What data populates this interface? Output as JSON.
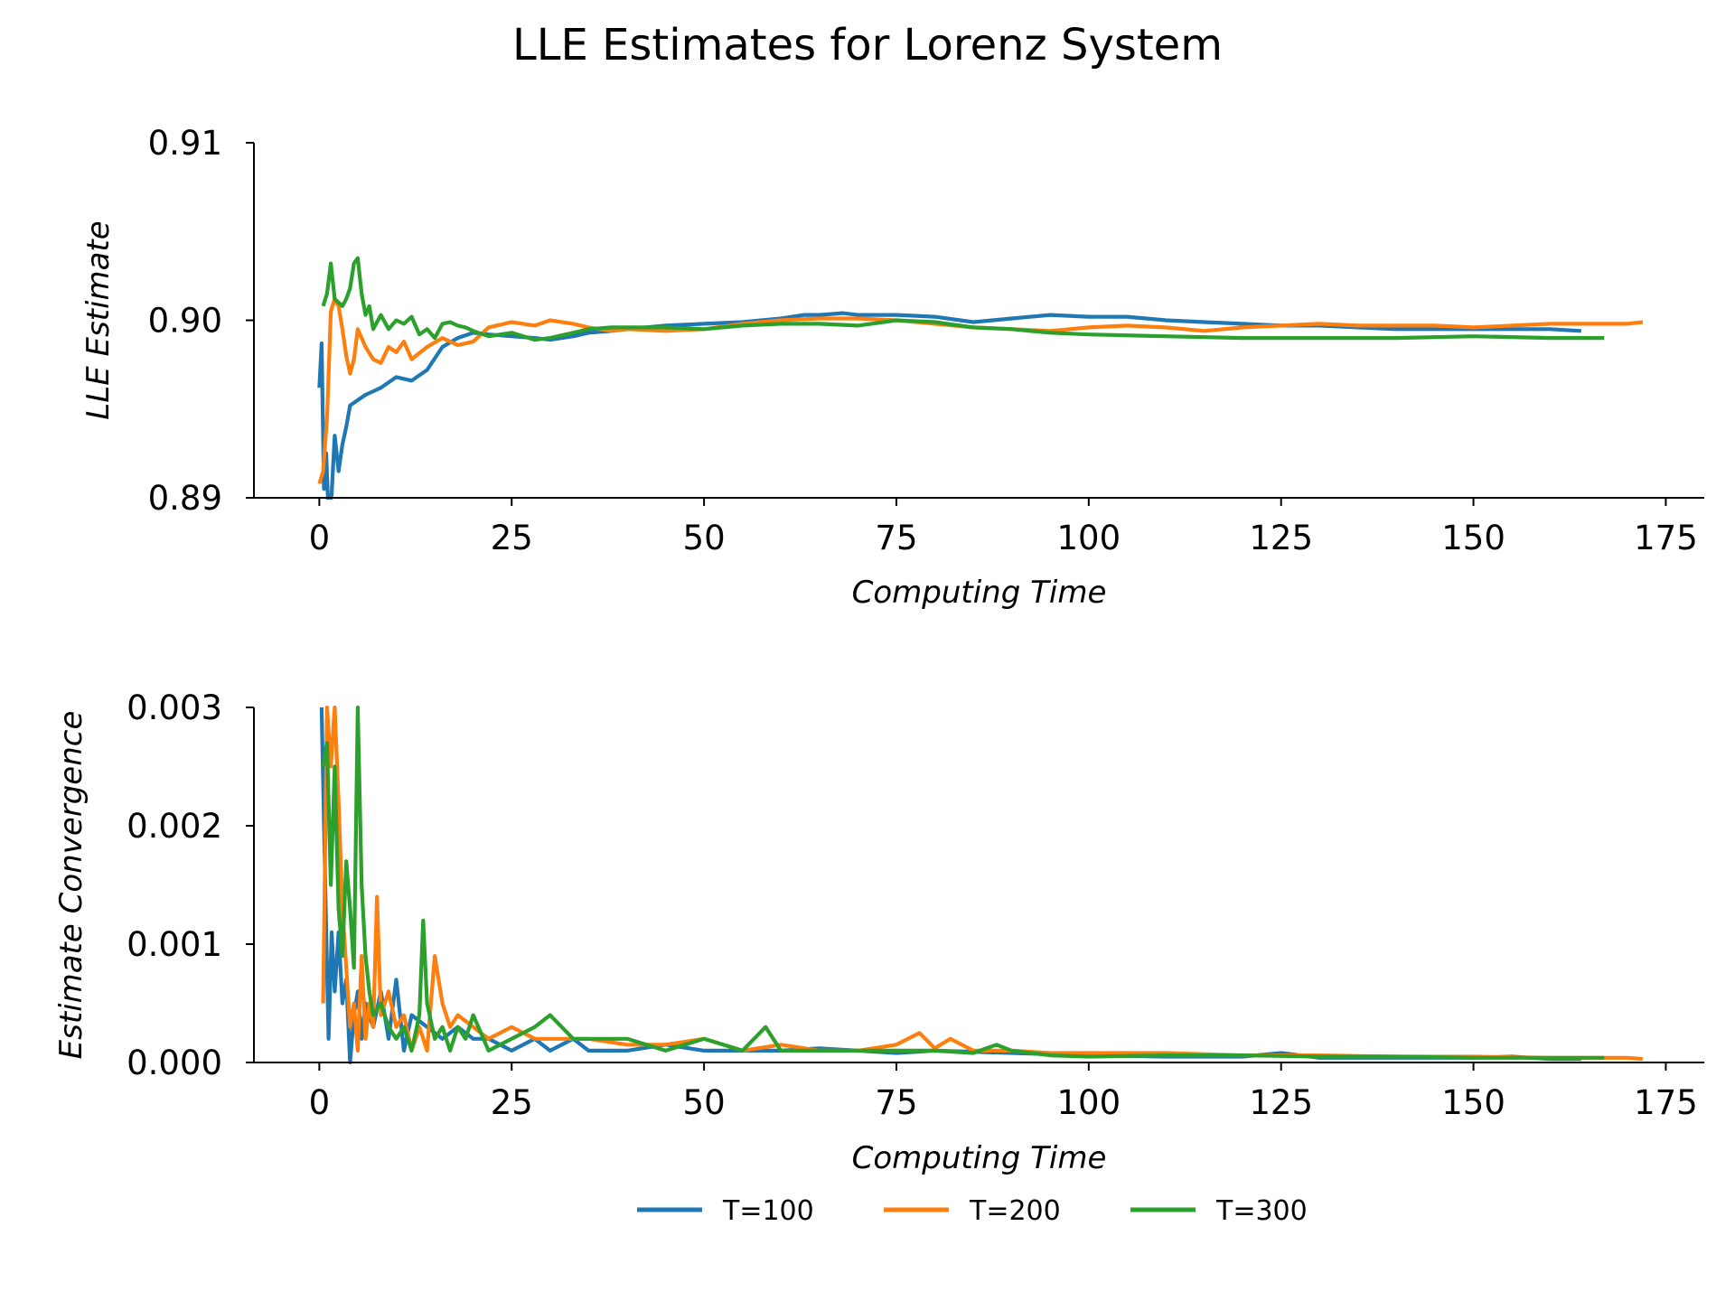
{
  "chart_data": {
    "title": "LLE Estimates for Lorenz System",
    "legend": {
      "placement": "bottom-center",
      "entries": [
        "T=100",
        "T=200",
        "T=300"
      ]
    },
    "colors": {
      "T=100": "#1f77b4",
      "T=200": "#ff7f0e",
      "T=300": "#2ca02c"
    },
    "charts": [
      {
        "type": "line",
        "xlabel": "Computing Time",
        "ylabel": "LLE Estimate",
        "xlim": [
          -8.5,
          180
        ],
        "ylim": [
          0.89,
          0.91
        ],
        "xticks": [
          "0",
          "25",
          "50",
          "75",
          "100",
          "125",
          "150",
          "175"
        ],
        "yticks": [
          "0.89",
          "0.90",
          "0.91"
        ],
        "grid": false,
        "series": [
          {
            "name": "T=100",
            "x": [
              0,
              0.3,
              0.6,
              0.9,
              1.2,
              1.6,
              2,
              2.5,
              3,
              3.5,
              4,
              5,
              6,
              7,
              8,
              9,
              10,
              12,
              14,
              16,
              18,
              20,
              22,
              25,
              28,
              30,
              33,
              35,
              38,
              40,
              45,
              50,
              55,
              60,
              63,
              65,
              68,
              70,
              75,
              80,
              85,
              90,
              95,
              100,
              105,
              110,
              115,
              120,
              125,
              130,
              135,
              140,
              145,
              150,
              155,
              160,
              164
            ],
            "y": [
              0.8962,
              0.8987,
              0.8905,
              0.8925,
              0.889,
              0.8902,
              0.8935,
              0.8915,
              0.893,
              0.894,
              0.8952,
              0.8955,
              0.8958,
              0.896,
              0.8962,
              0.8965,
              0.8968,
              0.8966,
              0.8972,
              0.8985,
              0.899,
              0.8993,
              0.8992,
              0.8991,
              0.899,
              0.8989,
              0.8991,
              0.8993,
              0.8994,
              0.8995,
              0.8997,
              0.8998,
              0.8999,
              0.9001,
              0.9003,
              0.9003,
              0.9004,
              0.9003,
              0.9003,
              0.9002,
              0.8999,
              0.9001,
              0.9003,
              0.9002,
              0.9002,
              0.9,
              0.8999,
              0.8998,
              0.8997,
              0.8997,
              0.8996,
              0.8995,
              0.8995,
              0.8995,
              0.8995,
              0.8995,
              0.8994
            ]
          },
          {
            "name": "T=200",
            "x": [
              0,
              0.5,
              1,
              1.5,
              2,
              2.5,
              3,
              3.5,
              4,
              4.5,
              5,
              6,
              7,
              8,
              9,
              10,
              11,
              12,
              14,
              16,
              18,
              20,
              22,
              25,
              28,
              30,
              33,
              35,
              38,
              40,
              45,
              50,
              55,
              60,
              65,
              70,
              75,
              80,
              85,
              90,
              95,
              100,
              105,
              110,
              115,
              120,
              125,
              130,
              135,
              140,
              145,
              150,
              155,
              160,
              165,
              170,
              172
            ],
            "y": [
              0.8908,
              0.8915,
              0.8945,
              0.9005,
              0.9012,
              0.9008,
              0.8995,
              0.898,
              0.897,
              0.8978,
              0.8995,
              0.8985,
              0.8978,
              0.8976,
              0.8985,
              0.8982,
              0.8988,
              0.8978,
              0.8985,
              0.899,
              0.8986,
              0.8988,
              0.8996,
              0.8999,
              0.8997,
              0.9,
              0.8998,
              0.8996,
              0.8994,
              0.8995,
              0.8994,
              0.8995,
              0.8998,
              0.9,
              0.9001,
              0.9001,
              0.9,
              0.8998,
              0.8996,
              0.8995,
              0.8994,
              0.8996,
              0.8997,
              0.8996,
              0.8994,
              0.8996,
              0.8997,
              0.8998,
              0.8997,
              0.8997,
              0.8997,
              0.8996,
              0.8997,
              0.8998,
              0.8998,
              0.8998,
              0.8999
            ]
          },
          {
            "name": "T=300",
            "x": [
              0.5,
              1,
              1.5,
              2,
              2.5,
              3,
              3.5,
              4,
              4.5,
              5,
              5.5,
              6,
              6.5,
              7,
              8,
              9,
              10,
              11,
              12,
              13,
              14,
              15,
              16,
              17,
              18,
              19,
              20,
              22,
              25,
              28,
              30,
              33,
              35,
              38,
              40,
              45,
              50,
              55,
              60,
              65,
              70,
              75,
              80,
              85,
              90,
              95,
              100,
              110,
              120,
              130,
              140,
              150,
              160,
              167
            ],
            "y": [
              0.9008,
              0.9015,
              0.9032,
              0.9012,
              0.901,
              0.9008,
              0.9012,
              0.9018,
              0.9032,
              0.9035,
              0.9015,
              0.9003,
              0.9008,
              0.8995,
              0.9003,
              0.8995,
              0.9,
              0.8998,
              0.9002,
              0.8992,
              0.8995,
              0.899,
              0.8998,
              0.8999,
              0.8997,
              0.8996,
              0.8994,
              0.8991,
              0.8993,
              0.8989,
              0.899,
              0.8993,
              0.8995,
              0.8996,
              0.8996,
              0.8996,
              0.8995,
              0.8997,
              0.8998,
              0.8998,
              0.8997,
              0.9,
              0.8999,
              0.8996,
              0.8995,
              0.8993,
              0.8992,
              0.8991,
              0.899,
              0.899,
              0.899,
              0.8991,
              0.899,
              0.899
            ]
          }
        ]
      },
      {
        "type": "line",
        "xlabel": "Computing Time",
        "ylabel": "Estimate Convergence",
        "xlim": [
          -8.5,
          180
        ],
        "ylim": [
          0,
          0.003
        ],
        "xticks": [
          "0",
          "25",
          "50",
          "75",
          "100",
          "125",
          "150",
          "175"
        ],
        "yticks": [
          "0.000",
          "0.001",
          "0.002",
          "0.003"
        ],
        "grid": false,
        "series": [
          {
            "name": "T=100",
            "x": [
              0.3,
              0.8,
              1.2,
              1.6,
              2,
              2.5,
              3,
              3.5,
              4,
              4.5,
              5,
              5.5,
              6,
              7,
              8,
              9,
              10,
              11,
              12,
              14,
              16,
              18,
              20,
              22,
              25,
              28,
              30,
              33,
              35,
              40,
              45,
              50,
              55,
              60,
              65,
              70,
              75,
              80,
              90,
              100,
              110,
              120,
              125,
              130,
              140,
              150,
              155,
              160,
              164
            ],
            "y": [
              0.003,
              0.0014,
              0.0002,
              0.0011,
              0.0006,
              0.0011,
              0.0005,
              0.0007,
              0.0,
              0.0004,
              0.0006,
              0.0002,
              0.0005,
              0.0003,
              0.0006,
              0.0002,
              0.0007,
              0.0001,
              0.0004,
              0.0003,
              0.0002,
              0.0003,
              0.0002,
              0.0002,
              0.0001,
              0.0002,
              0.0001,
              0.0002,
              0.0001,
              0.0001,
              0.00015,
              0.0001,
              0.0001,
              0.0001,
              0.00012,
              0.0001,
              8e-05,
              0.0001,
              8e-05,
              6e-05,
              5e-05,
              5e-05,
              8e-05,
              4e-05,
              4e-05,
              4e-05,
              5e-05,
              3e-05,
              3e-05
            ]
          },
          {
            "name": "T=200",
            "x": [
              0.5,
              1,
              1.5,
              2,
              2.5,
              3,
              3.5,
              4,
              4.5,
              5,
              5.5,
              6,
              6.5,
              7,
              7.5,
              8,
              9,
              10,
              11,
              12,
              13,
              14,
              15,
              16,
              17,
              18,
              20,
              22,
              25,
              28,
              30,
              35,
              40,
              45,
              50,
              55,
              60,
              65,
              70,
              75,
              78,
              80,
              82,
              85,
              90,
              95,
              100,
              105,
              110,
              120,
              130,
              140,
              150,
              160,
              170,
              172
            ],
            "y": [
              0.0005,
              0.003,
              0.0025,
              0.003,
              0.0022,
              0.0013,
              0.0008,
              0.0003,
              0.0005,
              0.0001,
              0.0009,
              0.0002,
              0.0005,
              0.0003,
              0.0014,
              0.0004,
              0.0006,
              0.0003,
              0.0004,
              0.0001,
              0.0003,
              0.0001,
              0.0009,
              0.0005,
              0.0003,
              0.0004,
              0.0003,
              0.0002,
              0.0003,
              0.0002,
              0.0002,
              0.0002,
              0.00015,
              0.00015,
              0.0002,
              0.0001,
              0.00015,
              0.0001,
              0.0001,
              0.00015,
              0.00025,
              0.00012,
              0.0002,
              0.0001,
              0.0001,
              8e-05,
              8e-05,
              8e-05,
              8e-05,
              6e-05,
              6e-05,
              5e-05,
              5e-05,
              4e-05,
              4e-05,
              3e-05
            ]
          },
          {
            "name": "T=300",
            "x": [
              0.5,
              1,
              1.5,
              2,
              2.5,
              3,
              3.5,
              4,
              4.5,
              5,
              5.5,
              6,
              6.5,
              7,
              8,
              9,
              10,
              11,
              12,
              13,
              13.5,
              14,
              15,
              16,
              17,
              18,
              19,
              20,
              22,
              25,
              28,
              30,
              33,
              35,
              40,
              45,
              50,
              55,
              58,
              60,
              65,
              70,
              75,
              80,
              85,
              88,
              90,
              95,
              100,
              110,
              120,
              130,
              140,
              150,
              160,
              167
            ],
            "y": [
              0.0025,
              0.0027,
              0.0015,
              0.0025,
              0.0013,
              0.0009,
              0.0017,
              0.0013,
              0.0008,
              0.003,
              0.0015,
              0.0009,
              0.0006,
              0.0004,
              0.0005,
              0.0003,
              0.0002,
              0.0003,
              0.0001,
              0.0004,
              0.0012,
              0.0005,
              0.0002,
              0.0003,
              0.0001,
              0.0003,
              0.0002,
              0.0004,
              0.0001,
              0.0002,
              0.0003,
              0.0004,
              0.0002,
              0.0002,
              0.0002,
              0.0001,
              0.0002,
              0.0001,
              0.0003,
              0.0001,
              0.0001,
              0.0001,
              0.0001,
              0.0001,
              8e-05,
              0.00015,
              0.0001,
              6e-05,
              5e-05,
              6e-05,
              6e-05,
              5e-05,
              5e-05,
              4e-05,
              4e-05,
              4e-05
            ]
          }
        ]
      }
    ]
  }
}
